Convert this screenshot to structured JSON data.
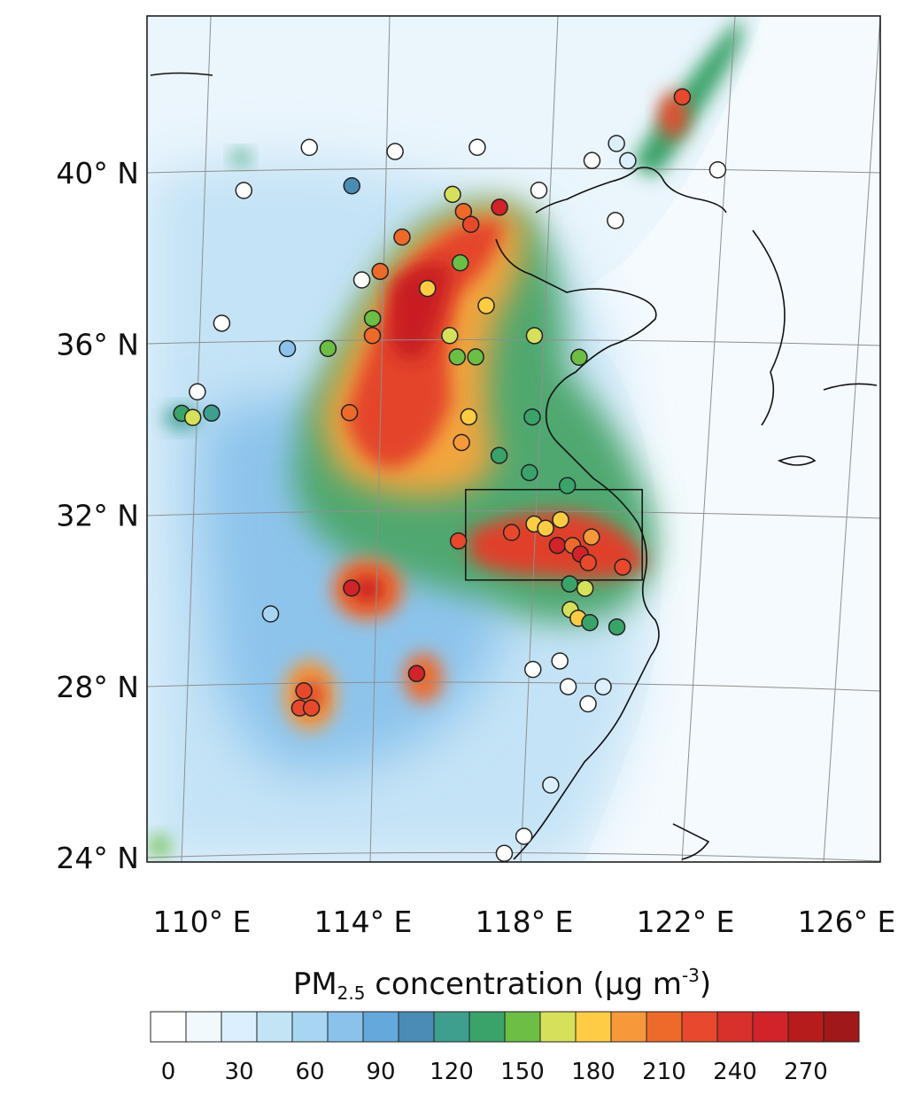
{
  "map": {
    "lat_labels": [
      {
        "lat": 40,
        "text": "40° N"
      },
      {
        "lat": 36,
        "text": "36° N"
      },
      {
        "lat": 32,
        "text": "32° N"
      },
      {
        "lat": 28,
        "text": "28° N"
      },
      {
        "lat": 24,
        "text": "24° N"
      }
    ],
    "lon_labels": [
      {
        "lon": 110,
        "text": "110° E"
      },
      {
        "lon": 114,
        "text": "114° E"
      },
      {
        "lon": 118,
        "text": "118° E"
      },
      {
        "lon": 122,
        "text": "122° E"
      },
      {
        "lon": 126,
        "text": "126° E"
      }
    ],
    "box_region": {
      "lon_min": 117.2,
      "lon_max": 121.8,
      "lat_min": 30.5,
      "lat_max": 32.6
    }
  },
  "colorbar": {
    "title_main": "PM",
    "title_sub": "2.5",
    "title_rest": " concentration (μg m",
    "title_sup": "-3",
    "title_end": ")",
    "tick_labels": [
      "0",
      "30",
      "60",
      "90",
      "120",
      "150",
      "180",
      "210",
      "240",
      "270"
    ],
    "colors": [
      "#ffffff",
      "#f2f9fd",
      "#dcefff",
      "#c2e4f5",
      "#a8d6f2",
      "#8ac2ec",
      "#65a8dc",
      "#4a8cb4",
      "#3e9f8e",
      "#3aa36a",
      "#6cbe45",
      "#d6e05a",
      "#ffcc44",
      "#f7983a",
      "#ee6a2a",
      "#e8492c",
      "#d8302a",
      "#d2222a",
      "#b71c1c",
      "#a01818"
    ]
  },
  "stations": [
    {
      "lon": 112.9,
      "lat": 40.6,
      "c": "#ffffff"
    },
    {
      "lon": 115.3,
      "lat": 40.5,
      "c": "#ffffff"
    },
    {
      "lon": 117.6,
      "lat": 40.6,
      "c": "#ffffff"
    },
    {
      "lon": 111.1,
      "lat": 39.6,
      "c": "#ffffff"
    },
    {
      "lon": 114.1,
      "lat": 39.7,
      "c": "#4a8cb4"
    },
    {
      "lon": 116.9,
      "lat": 39.5,
      "c": "#d6e05a"
    },
    {
      "lon": 117.2,
      "lat": 39.1,
      "c": "#ee6a2a"
    },
    {
      "lon": 118.2,
      "lat": 39.2,
      "c": "#d2222a"
    },
    {
      "lon": 119.3,
      "lat": 39.6,
      "c": "#ffffff"
    },
    {
      "lon": 115.5,
      "lat": 38.5,
      "c": "#ee6a2a"
    },
    {
      "lon": 117.4,
      "lat": 38.8,
      "c": "#e8492c"
    },
    {
      "lon": 117.1,
      "lat": 37.9,
      "c": "#6cbe45"
    },
    {
      "lon": 114.4,
      "lat": 37.5,
      "c": "#ffffff"
    },
    {
      "lon": 114.9,
      "lat": 37.7,
      "c": "#ee6a2a"
    },
    {
      "lon": 116.2,
      "lat": 37.3,
      "c": "#ffcc44"
    },
    {
      "lon": 117.8,
      "lat": 36.9,
      "c": "#ffcc44"
    },
    {
      "lon": 114.7,
      "lat": 36.6,
      "c": "#6cbe45"
    },
    {
      "lon": 114.7,
      "lat": 36.2,
      "c": "#ee6a2a"
    },
    {
      "lon": 116.8,
      "lat": 36.2,
      "c": "#d6e05a"
    },
    {
      "lon": 119.1,
      "lat": 36.2,
      "c": "#d6e05a"
    },
    {
      "lon": 110.6,
      "lat": 36.5,
      "c": "#ffffff"
    },
    {
      "lon": 112.4,
      "lat": 35.9,
      "c": "#8ac2ec"
    },
    {
      "lon": 113.5,
      "lat": 35.9,
      "c": "#6cbe45"
    },
    {
      "lon": 117.0,
      "lat": 35.7,
      "c": "#6cbe45"
    },
    {
      "lon": 117.5,
      "lat": 35.7,
      "c": "#6cbe45"
    },
    {
      "lon": 120.3,
      "lat": 35.7,
      "c": "#6cbe45"
    },
    {
      "lon": 110.0,
      "lat": 34.9,
      "c": "#ffffff"
    },
    {
      "lon": 109.6,
      "lat": 34.4,
      "c": "#3aa36a"
    },
    {
      "lon": 109.9,
      "lat": 34.3,
      "c": "#d6e05a"
    },
    {
      "lon": 110.4,
      "lat": 34.4,
      "c": "#3e9f8e"
    },
    {
      "lon": 114.1,
      "lat": 34.4,
      "c": "#ee6a2a"
    },
    {
      "lon": 117.3,
      "lat": 34.3,
      "c": "#ffcc44"
    },
    {
      "lon": 117.1,
      "lat": 33.7,
      "c": "#f7983a"
    },
    {
      "lon": 119.0,
      "lat": 34.3,
      "c": "#3aa36a"
    },
    {
      "lon": 118.1,
      "lat": 33.4,
      "c": "#3aa36a"
    },
    {
      "lon": 118.9,
      "lat": 33.0,
      "c": "#3aa36a"
    },
    {
      "lon": 119.9,
      "lat": 32.7,
      "c": "#3aa36a"
    },
    {
      "lon": 117.0,
      "lat": 31.4,
      "c": "#e8492c"
    },
    {
      "lon": 118.4,
      "lat": 31.6,
      "c": "#e8492c"
    },
    {
      "lon": 119.0,
      "lat": 31.8,
      "c": "#ffcc44"
    },
    {
      "lon": 119.3,
      "lat": 31.7,
      "c": "#ffcc44"
    },
    {
      "lon": 119.7,
      "lat": 31.9,
      "c": "#ffcc44"
    },
    {
      "lon": 119.6,
      "lat": 31.3,
      "c": "#d2222a"
    },
    {
      "lon": 120.0,
      "lat": 31.3,
      "c": "#ee6a2a"
    },
    {
      "lon": 120.2,
      "lat": 31.1,
      "c": "#d2222a"
    },
    {
      "lon": 120.5,
      "lat": 31.5,
      "c": "#f7983a"
    },
    {
      "lon": 120.4,
      "lat": 30.9,
      "c": "#e8492c"
    },
    {
      "lon": 121.3,
      "lat": 30.8,
      "c": "#e8492c"
    },
    {
      "lon": 119.9,
      "lat": 30.4,
      "c": "#3aa36a"
    },
    {
      "lon": 120.3,
      "lat": 30.3,
      "c": "#d6e05a"
    },
    {
      "lon": 119.9,
      "lat": 29.8,
      "c": "#d6e05a"
    },
    {
      "lon": 120.1,
      "lat": 29.6,
      "c": "#ffcc44"
    },
    {
      "lon": 120.4,
      "lat": 29.5,
      "c": "#3aa36a"
    },
    {
      "lon": 121.1,
      "lat": 29.4,
      "c": "#3aa36a"
    },
    {
      "lon": 114.2,
      "lat": 30.3,
      "c": "#d2222a"
    },
    {
      "lon": 112.1,
      "lat": 29.7,
      "c": "#a8d6f2"
    },
    {
      "lon": 115.9,
      "lat": 28.3,
      "c": "#d2222a"
    },
    {
      "lon": 113.0,
      "lat": 27.9,
      "c": "#e8492c"
    },
    {
      "lon": 112.9,
      "lat": 27.5,
      "c": "#e8492c"
    },
    {
      "lon": 113.2,
      "lat": 27.5,
      "c": "#e8492c"
    },
    {
      "lon": 118.9,
      "lat": 28.4,
      "c": "#ffffff"
    },
    {
      "lon": 119.6,
      "lat": 28.6,
      "c": "#ffffff"
    },
    {
      "lon": 119.8,
      "lat": 28.0,
      "c": "#ffffff"
    },
    {
      "lon": 120.7,
      "lat": 28.0,
      "c": "#dcefff"
    },
    {
      "lon": 120.3,
      "lat": 27.6,
      "c": "#ffffff"
    },
    {
      "lon": 119.3,
      "lat": 25.7,
      "c": "#dcefff"
    },
    {
      "lon": 118.6,
      "lat": 24.5,
      "c": "#ffffff"
    },
    {
      "lon": 118.1,
      "lat": 24.1,
      "c": "#ffffff"
    },
    {
      "lon": 121.4,
      "lat": 38.9,
      "c": "#ffffff"
    },
    {
      "lon": 121.5,
      "lat": 40.7,
      "c": "#dcefff"
    },
    {
      "lon": 121.8,
      "lat": 40.3,
      "c": "#dcefff"
    },
    {
      "lon": 120.8,
      "lat": 40.3,
      "c": "#ffffff"
    },
    {
      "lon": 123.4,
      "lat": 41.8,
      "c": "#e8492c"
    },
    {
      "lon": 124.3,
      "lat": 40.1,
      "c": "#ffffff"
    }
  ]
}
